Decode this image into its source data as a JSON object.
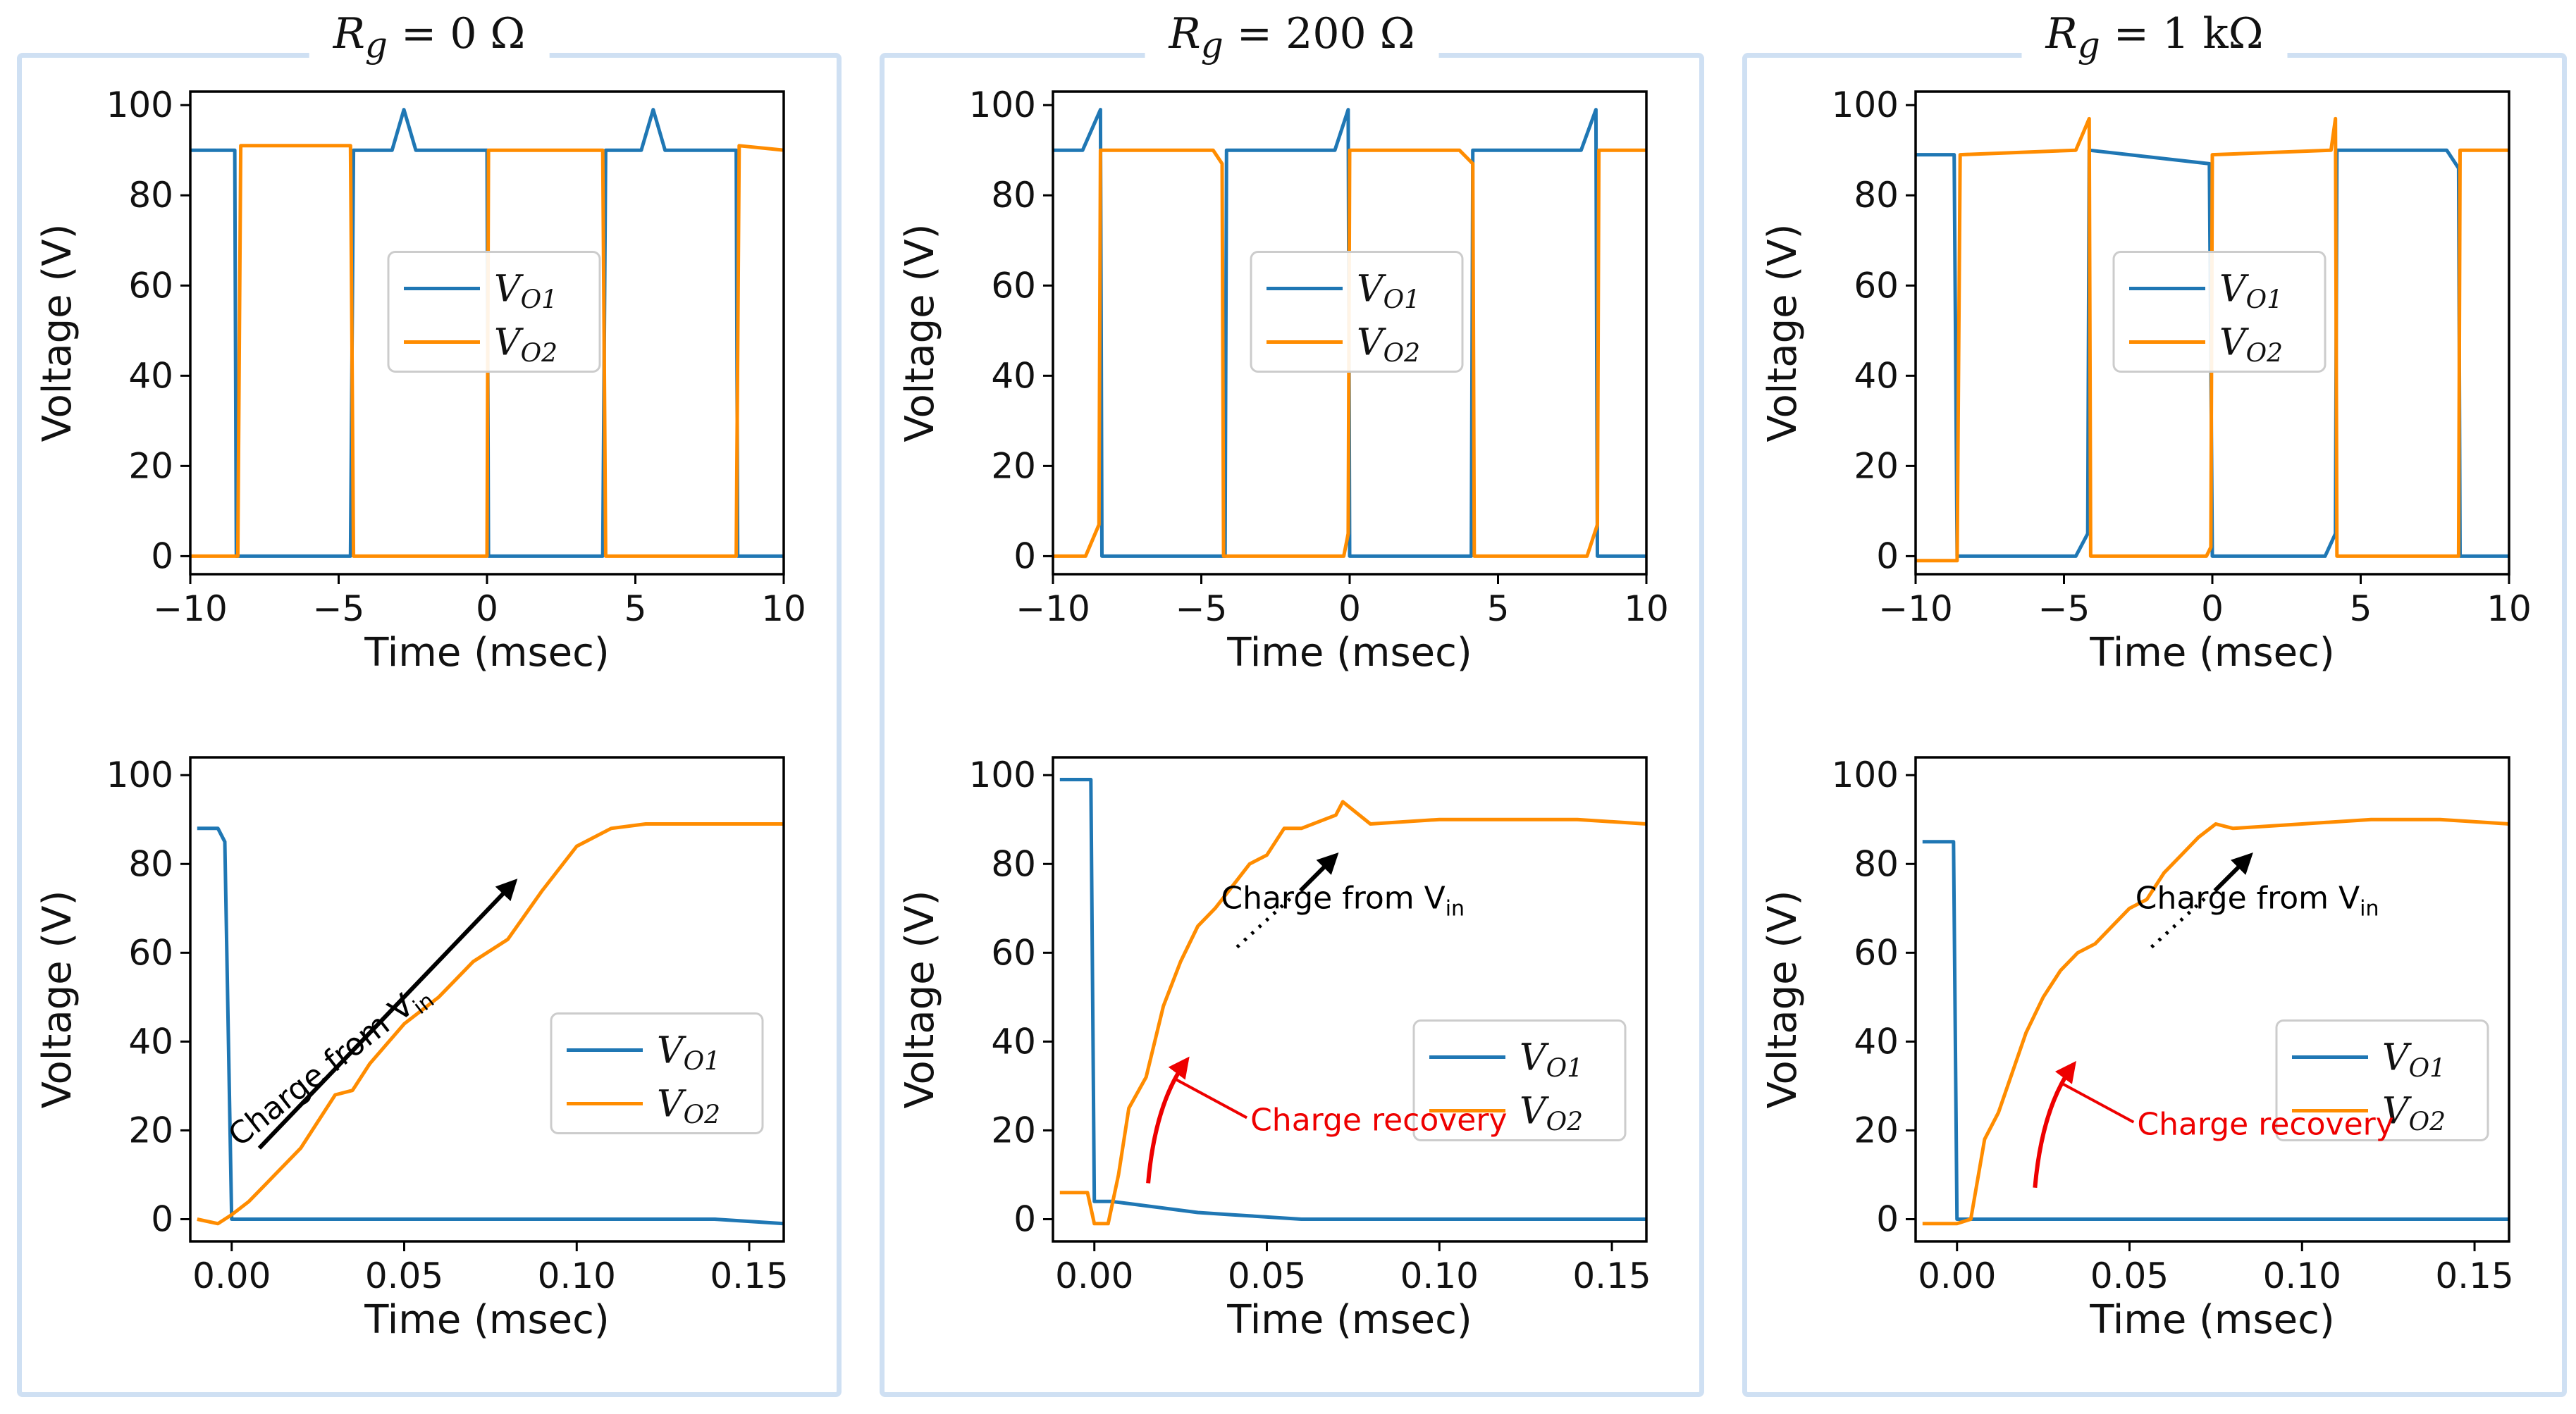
{
  "panels": [
    {
      "title": {
        "var": "R",
        "sub": "g",
        "value": "= 0 Ω"
      },
      "top_chart": {
        "type": "line",
        "xlabel": "Time (msec)",
        "ylabel": "Voltage (V)",
        "xlim": [
          -10,
          10
        ],
        "ylim": [
          -4,
          103
        ],
        "xticks": [
          -10,
          -5,
          0,
          5,
          10
        ],
        "xtick_labels": [
          "−10",
          "−5",
          "0",
          "5",
          "10"
        ],
        "yticks": [
          0,
          20,
          40,
          60,
          80,
          100
        ],
        "legend": "center",
        "series": [
          {
            "name": "VO1",
            "color": "#1f77b4",
            "x": [
              -10,
              -8.5,
              -8.45,
              -4.6,
              -4.5,
              -3.2,
              -2.8,
              -2.4,
              0,
              0.05,
              3.9,
              4.0,
              5.2,
              5.6,
              6.0,
              8.4,
              8.45,
              10
            ],
            "y": [
              90,
              90,
              0,
              0,
              90,
              90,
              99,
              90,
              90,
              0,
              0,
              90,
              90,
              99,
              90,
              90,
              0,
              0
            ]
          },
          {
            "name": "VO2",
            "color": "#ff8c00",
            "x": [
              -10,
              -8.4,
              -8.3,
              -4.6,
              -4.5,
              0,
              0.05,
              3.9,
              4.0,
              8.4,
              8.5,
              10
            ],
            "y": [
              0,
              0,
              91,
              91,
              0,
              0,
              90,
              90,
              0,
              0,
              91,
              90
            ]
          }
        ]
      },
      "bottom_chart": {
        "type": "line",
        "xlabel": "Time (msec)",
        "ylabel": "Voltage (V)",
        "xlim": [
          -0.012,
          0.16
        ],
        "ylim": [
          -5,
          104
        ],
        "xticks": [
          0,
          0.05,
          0.1,
          0.15
        ],
        "xtick_labels": [
          "0.00",
          "0.05",
          "0.10",
          "0.15"
        ],
        "yticks": [
          0,
          20,
          40,
          60,
          80,
          100
        ],
        "legend": "center-right",
        "series": [
          {
            "name": "VO1",
            "color": "#1f77b4",
            "x": [
              -0.01,
              -0.004,
              -0.002,
              0.0,
              0.002,
              0.01,
              0.02,
              0.04,
              0.06,
              0.08,
              0.1,
              0.12,
              0.14,
              0.16
            ],
            "y": [
              88,
              88,
              85,
              0,
              0,
              0,
              0,
              0,
              0,
              0,
              0,
              0,
              0,
              -1
            ]
          },
          {
            "name": "VO2",
            "color": "#ff8c00",
            "x": [
              -0.01,
              -0.004,
              0.0,
              0.005,
              0.01,
              0.02,
              0.03,
              0.035,
              0.04,
              0.05,
              0.06,
              0.07,
              0.08,
              0.09,
              0.1,
              0.11,
              0.12,
              0.14,
              0.16
            ],
            "y": [
              0,
              -1,
              1,
              4,
              8,
              16,
              28,
              29,
              35,
              44,
              50,
              58,
              63,
              74,
              84,
              88,
              89,
              89,
              89
            ]
          }
        ],
        "annotations": [
          {
            "text": "Charge from Vin",
            "color": "#000000",
            "x": 0.03,
            "y": 33,
            "rotate": -38
          }
        ]
      }
    },
    {
      "title": {
        "var": "R",
        "sub": "g",
        "value": "= 200 Ω"
      },
      "top_chart": {
        "type": "line",
        "xlabel": "Time (msec)",
        "ylabel": "Voltage (V)",
        "xlim": [
          -10,
          10
        ],
        "ylim": [
          -4,
          103
        ],
        "xticks": [
          -10,
          -5,
          0,
          5,
          10
        ],
        "xtick_labels": [
          "−10",
          "−5",
          "0",
          "5",
          "10"
        ],
        "yticks": [
          0,
          20,
          40,
          60,
          80,
          100
        ],
        "legend": "center",
        "series": [
          {
            "name": "VO1",
            "color": "#1f77b4",
            "x": [
              -10,
              -9.0,
              -8.4,
              -8.35,
              -4.2,
              -4.15,
              -0.5,
              -0.05,
              0.0,
              4.1,
              4.15,
              7.8,
              8.3,
              8.35,
              10
            ],
            "y": [
              90,
              90,
              99,
              0,
              0,
              90,
              90,
              99,
              0,
              0,
              90,
              90,
              99,
              0,
              0
            ]
          },
          {
            "name": "VO2",
            "color": "#ff8c00",
            "x": [
              -10,
              -8.9,
              -8.45,
              -8.4,
              -4.6,
              -4.3,
              -4.25,
              -0.2,
              -0.05,
              0.0,
              3.7,
              4.15,
              4.2,
              8.0,
              8.35,
              8.4,
              10
            ],
            "y": [
              0,
              0,
              7,
              90,
              90,
              87,
              0,
              0,
              5,
              90,
              90,
              87,
              0,
              0,
              7,
              90,
              90
            ]
          }
        ]
      },
      "bottom_chart": {
        "type": "line",
        "xlabel": "Time (msec)",
        "ylabel": "Voltage (V)",
        "xlim": [
          -0.012,
          0.16
        ],
        "ylim": [
          -5,
          104
        ],
        "xticks": [
          0,
          0.05,
          0.1,
          0.15
        ],
        "xtick_labels": [
          "0.00",
          "0.05",
          "0.10",
          "0.15"
        ],
        "yticks": [
          0,
          20,
          40,
          60,
          80,
          100
        ],
        "legend": "lower-right",
        "series": [
          {
            "name": "VO1",
            "color": "#1f77b4",
            "x": [
              -0.01,
              -0.001,
              0.0,
              0.005,
              0.01,
              0.02,
              0.03,
              0.04,
              0.06,
              0.08,
              0.1,
              0.12,
              0.14,
              0.16
            ],
            "y": [
              99,
              99,
              4,
              4,
              3.5,
              2.5,
              1.5,
              1,
              0,
              0,
              0,
              0,
              0,
              0
            ]
          },
          {
            "name": "VO2",
            "color": "#ff8c00",
            "x": [
              -0.01,
              -0.002,
              0.0,
              0.004,
              0.007,
              0.01,
              0.015,
              0.02,
              0.025,
              0.03,
              0.035,
              0.04,
              0.045,
              0.05,
              0.055,
              0.06,
              0.07,
              0.072,
              0.08,
              0.1,
              0.12,
              0.14,
              0.16
            ],
            "y": [
              6,
              6,
              -1,
              -1,
              10,
              25,
              32,
              48,
              58,
              66,
              70,
              75,
              80,
              82,
              88,
              88,
              91,
              94,
              89,
              90,
              90,
              90,
              89
            ]
          }
        ],
        "annotations": [
          {
            "text": "Charge from Vin",
            "color": "#000000",
            "x": 0.072,
            "y": 70,
            "rotate": 0
          },
          {
            "text": "Charge recovery",
            "color": "#ee0000",
            "x": 0.035,
            "y": 20,
            "rotate": 0
          }
        ]
      }
    },
    {
      "title": {
        "var": "R",
        "sub": "g",
        "value": "= 1 kΩ"
      },
      "top_chart": {
        "type": "line",
        "xlabel": "Time (msec)",
        "ylabel": "Voltage (V)",
        "xlim": [
          -10,
          10
        ],
        "ylim": [
          -4,
          103
        ],
        "xticks": [
          -10,
          -5,
          0,
          5,
          10
        ],
        "xtick_labels": [
          "−10",
          "−5",
          "0",
          "5",
          "10"
        ],
        "yticks": [
          0,
          20,
          40,
          60,
          80,
          100
        ],
        "legend": "center",
        "series": [
          {
            "name": "VO1",
            "color": "#1f77b4",
            "x": [
              -10,
              -8.7,
              -8.6,
              -4.6,
              -4.2,
              -4.15,
              -0.1,
              0.0,
              3.8,
              4.15,
              4.2,
              7.9,
              8.3,
              8.35,
              10
            ],
            "y": [
              89,
              89,
              0,
              0,
              5,
              90,
              87,
              0,
              0,
              5,
              90,
              90,
              86,
              0,
              0
            ]
          },
          {
            "name": "VO2",
            "color": "#ff8c00",
            "x": [
              -10,
              -8.6,
              -8.5,
              -4.6,
              -4.15,
              -4.1,
              -0.2,
              -0.05,
              0.0,
              4.0,
              4.15,
              4.2,
              8.3,
              8.35,
              10
            ],
            "y": [
              -1,
              -1,
              89,
              90,
              97,
              0,
              0,
              2,
              89,
              90,
              97,
              0,
              0,
              90,
              90
            ]
          }
        ]
      },
      "bottom_chart": {
        "type": "line",
        "xlabel": "Time (msec)",
        "ylabel": "Voltage (V)",
        "xlim": [
          -0.012,
          0.16
        ],
        "ylim": [
          -5,
          104
        ],
        "xticks": [
          0,
          0.05,
          0.1,
          0.15
        ],
        "xtick_labels": [
          "0.00",
          "0.05",
          "0.10",
          "0.15"
        ],
        "yticks": [
          0,
          20,
          40,
          60,
          80,
          100
        ],
        "legend": "lower-right",
        "series": [
          {
            "name": "VO1",
            "color": "#1f77b4",
            "x": [
              -0.01,
              -0.001,
              0.0,
              0.005,
              0.02,
              0.04,
              0.06,
              0.08,
              0.1,
              0.12,
              0.14,
              0.16
            ],
            "y": [
              85,
              85,
              0,
              0,
              0,
              0,
              0,
              0,
              0,
              0,
              0,
              0
            ]
          },
          {
            "name": "VO2",
            "color": "#ff8c00",
            "x": [
              -0.01,
              0.0,
              0.004,
              0.008,
              0.012,
              0.02,
              0.025,
              0.03,
              0.035,
              0.04,
              0.045,
              0.05,
              0.055,
              0.06,
              0.065,
              0.07,
              0.075,
              0.08,
              0.1,
              0.12,
              0.14,
              0.16
            ],
            "y": [
              -1,
              -1,
              0,
              18,
              24,
              42,
              50,
              56,
              60,
              62,
              66,
              70,
              72,
              78,
              82,
              86,
              89,
              88,
              89,
              90,
              90,
              89
            ]
          }
        ],
        "annotations": [
          {
            "text": "Charge from Vin",
            "color": "#000000",
            "x": 0.087,
            "y": 70,
            "rotate": 0
          },
          {
            "text": "Charge recovery",
            "color": "#ee0000",
            "x": 0.042,
            "y": 19,
            "rotate": 0
          }
        ]
      }
    }
  ],
  "legend_labels": {
    "vo1": "VO1",
    "vo2": "VO2"
  }
}
